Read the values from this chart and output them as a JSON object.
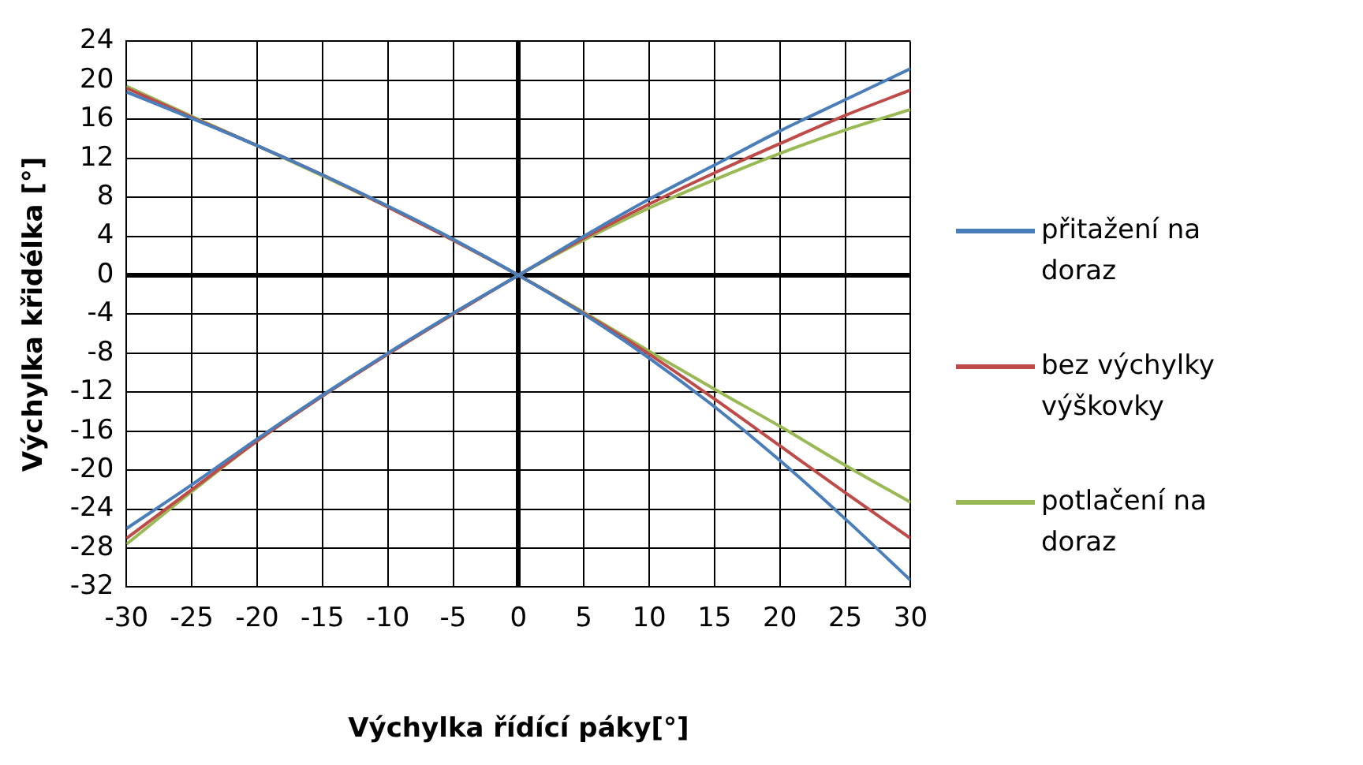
{
  "chart_data": {
    "type": "line",
    "xlabel": "Výchylka řídící páky[°]",
    "ylabel": "Výchylka křidélka [°]",
    "x": [
      -30,
      -25,
      -20,
      -15,
      -10,
      -5,
      0,
      5,
      10,
      15,
      20,
      25,
      30
    ],
    "xlim": [
      -30,
      30
    ],
    "xticks": [
      -30,
      -25,
      -20,
      -15,
      -10,
      -5,
      0,
      5,
      10,
      15,
      20,
      25,
      30
    ],
    "ylim": [
      -32,
      24
    ],
    "yticks": [
      -32,
      -28,
      -24,
      -20,
      -16,
      -12,
      -8,
      -4,
      0,
      4,
      8,
      12,
      16,
      20,
      24
    ],
    "grid": true,
    "legend": "right",
    "marker": "none",
    "line_style": "solid",
    "series": [
      {
        "name": "přitažení na doraz",
        "color": "#4a7ebb",
        "values": [
          -26,
          -21.5,
          -16.8,
          -12.3,
          -8,
          -3.9,
          0,
          4,
          7.8,
          11.3,
          14.8,
          18,
          21.2
        ]
      },
      {
        "name": "bez výchylky výškovky",
        "color": "#be4b48",
        "values": [
          -27,
          -22,
          -17,
          -12.4,
          -8.1,
          -4,
          0,
          3.8,
          7.3,
          10.5,
          13.5,
          16.4,
          19
        ]
      },
      {
        "name": "potlačení na doraz",
        "color": "#98b954",
        "values": [
          -27.6,
          -22.2,
          -17,
          -12.4,
          -8.1,
          -4,
          0,
          3.6,
          6.9,
          9.8,
          12.5,
          14.9,
          17
        ]
      },
      {
        "color": "#4a7ebb",
        "values": [
          18.8,
          16.1,
          13.3,
          10.3,
          7.1,
          3.7,
          0,
          -4,
          -8.5,
          -13.5,
          -19,
          -25,
          -31.3
        ]
      },
      {
        "color": "#be4b48",
        "values": [
          19.2,
          16.2,
          13.3,
          10.3,
          7,
          3.6,
          0,
          -3.9,
          -8.1,
          -12.7,
          -17.5,
          -22.3,
          -27
        ]
      },
      {
        "color": "#98b954",
        "values": [
          19.4,
          16.3,
          13.3,
          10.2,
          7,
          3.6,
          0,
          -3.8,
          -7.8,
          -11.7,
          -15.5,
          -19.5,
          -23.3
        ]
      }
    ]
  }
}
